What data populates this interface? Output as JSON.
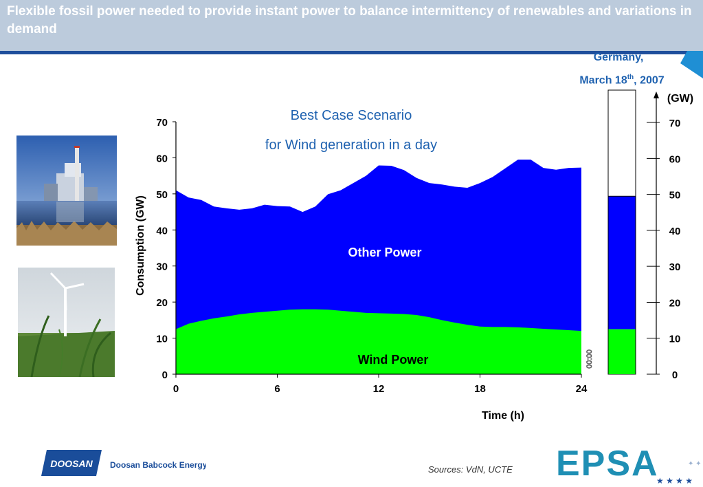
{
  "slide": {
    "title": "Flexible fossil power needed to provide instant power to balance intermittency of renewables and variations in demand",
    "country": "Germany,",
    "date_prefix": "March 18",
    "date_sup": "th",
    "date_suffix": ", 2007",
    "sources": "Sources: VdN, UCTE"
  },
  "logos": {
    "doosan_badge": "DOOSAN",
    "doosan_name": "Doosan Babcock Energy",
    "epsa": "EPSA"
  },
  "colors": {
    "header_band": "#bccbdc",
    "header_rule": "#1f4f9c",
    "other_power": "#0000ff",
    "wind_power": "#00ff00",
    "title_blue": "#1f62b0"
  },
  "chart_data": [
    {
      "type": "area",
      "title": "Best Case Scenario",
      "subtitle": "for Wind generation in a day",
      "xlabel": "Time (h)",
      "ylabel": "Consumption (GW)",
      "xlim": [
        0,
        24
      ],
      "ylim": [
        0,
        70
      ],
      "xticks": [
        0,
        6,
        12,
        18,
        24
      ],
      "yticks": [
        0,
        10,
        20,
        30,
        40,
        50,
        60,
        70
      ],
      "x": [
        0,
        0.75,
        1.5,
        2.25,
        3,
        3.75,
        4.5,
        5.25,
        6,
        6.75,
        7.5,
        8.25,
        9,
        9.75,
        10.5,
        11.25,
        12,
        12.75,
        13.5,
        14.25,
        15,
        15.75,
        16.5,
        17.25,
        18,
        18.75,
        19.5,
        20.25,
        21,
        21.75,
        22.5,
        23.25,
        24
      ],
      "series": [
        {
          "name": "Wind Power",
          "values": [
            12.5,
            14.0,
            14.8,
            15.5,
            16.0,
            16.6,
            17.0,
            17.3,
            17.6,
            17.9,
            18.0,
            18.0,
            17.9,
            17.6,
            17.3,
            17.0,
            16.9,
            16.8,
            16.7,
            16.4,
            15.8,
            15.0,
            14.3,
            13.7,
            13.2,
            13.1,
            13.1,
            13.0,
            12.8,
            12.6,
            12.4,
            12.2,
            12.0
          ]
        },
        {
          "name": "Other Power",
          "values": [
            38.5,
            35.0,
            33.5,
            31.0,
            30.0,
            29.0,
            29.0,
            29.7,
            29.0,
            28.6,
            27.0,
            28.5,
            32.0,
            33.4,
            35.7,
            38.0,
            41.0,
            41.0,
            39.9,
            38.0,
            37.2,
            37.6,
            37.7,
            38.0,
            39.8,
            41.6,
            44.0,
            46.5,
            46.7,
            44.6,
            44.3,
            45.0,
            45.3
          ]
        }
      ],
      "x_axis_annotation": "00:00"
    },
    {
      "type": "bar",
      "categories": [
        "March 18th, 2007"
      ],
      "series": [
        {
          "name": "Wind Power",
          "values": [
            12.5
          ]
        },
        {
          "name": "Other Power",
          "values": [
            37
          ]
        }
      ],
      "ylabel": "(GW)",
      "ylim": [
        0,
        79
      ],
      "yticks": [
        0,
        10,
        20,
        30,
        40,
        50,
        60,
        70
      ]
    }
  ]
}
